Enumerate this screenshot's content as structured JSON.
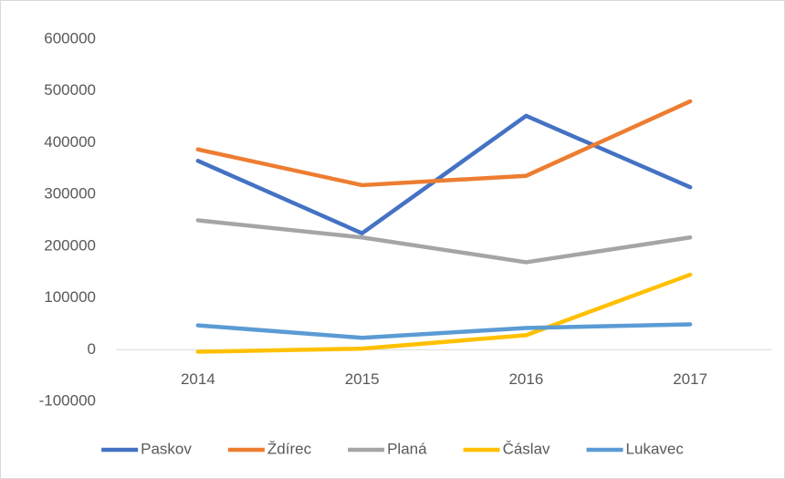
{
  "chart_data": {
    "type": "line",
    "categories": [
      "2014",
      "2015",
      "2016",
      "2017"
    ],
    "series": [
      {
        "name": "Paskov",
        "color": "#4472c4",
        "values": [
          365000,
          225000,
          452000,
          314000
        ]
      },
      {
        "name": "Ždírec",
        "color": "#ed7d31",
        "values": [
          387000,
          318000,
          336000,
          480000
        ]
      },
      {
        "name": "Planá",
        "color": "#a5a5a5",
        "values": [
          250000,
          217000,
          169000,
          217000
        ]
      },
      {
        "name": "Čáslav",
        "color": "#ffc000",
        "values": [
          -4000,
          2000,
          28000,
          145000
        ]
      },
      {
        "name": "Lukavec",
        "color": "#5b9bd5",
        "values": [
          47000,
          23000,
          42000,
          49000
        ]
      }
    ],
    "ylim": [
      -100000,
      600000
    ],
    "yticks": [
      -100000,
      0,
      100000,
      200000,
      300000,
      400000,
      500000,
      600000
    ],
    "grid": false,
    "legend": "bottom"
  }
}
